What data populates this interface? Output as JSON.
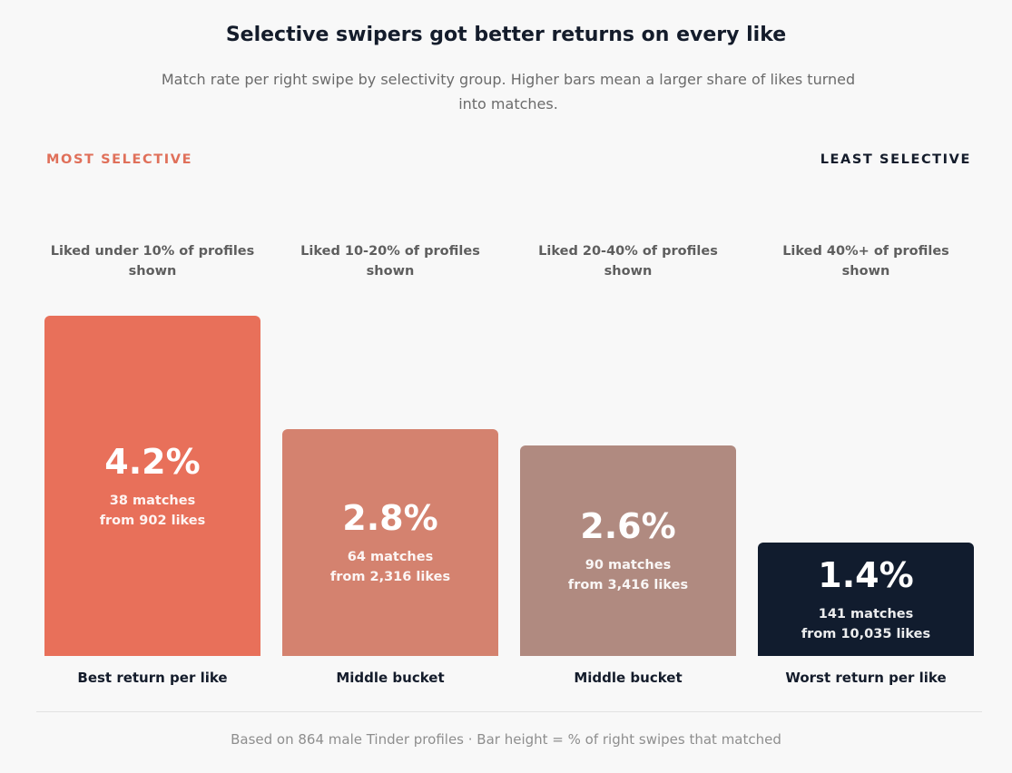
{
  "header": {
    "title": "Selective swipers got better returns on every like",
    "subtitle": "Match rate per right swipe by selectivity group. Higher bars mean a larger share of likes turned into matches."
  },
  "scale": {
    "left_label": "MOST SELECTIVE",
    "right_label": "LEAST SELECTIVE"
  },
  "footer": {
    "note": "Based on 864 male Tinder profiles · Bar height = % of right swipes that matched"
  },
  "colors": {
    "accent": "#e8705a",
    "dark": "#111c2e",
    "muted_text": "#6b6b6b"
  },
  "chart_data": {
    "type": "bar",
    "title": "Selective swipers got better returns on every like",
    "categories": [
      "Liked under 10% of profiles shown",
      "Liked 10-20% of profiles shown",
      "Liked 20-40% of profiles shown",
      "Liked 40%+ of profiles shown"
    ],
    "values": [
      4.2,
      2.8,
      2.6,
      1.4
    ],
    "value_labels": [
      "4.2%",
      "2.8%",
      "2.6%",
      "1.4%"
    ],
    "matches_labels": [
      "38 matches",
      "64 matches",
      "90 matches",
      "141 matches"
    ],
    "likes_labels": [
      "from 902 likes",
      "from 2,316 likes",
      "from 3,416 likes",
      "from 10,035 likes"
    ],
    "bottom_labels": [
      "Best return per like",
      "Middle bucket",
      "Middle bucket",
      "Worst return per like"
    ],
    "bar_colors": [
      "#e8705a",
      "#d4826f",
      "#b08a80",
      "#111c2e"
    ],
    "ylim": [
      0,
      4.2
    ],
    "grid": false
  }
}
